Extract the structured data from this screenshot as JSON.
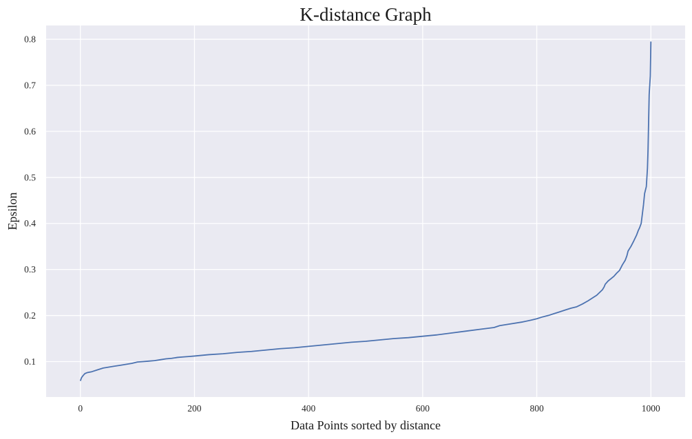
{
  "chart_data": {
    "type": "line",
    "title": "K-distance Graph",
    "xlabel": "Data Points sorted by distance",
    "ylabel": "Epsilon",
    "xlim": [
      -60,
      1060
    ],
    "ylim": [
      0.023,
      0.83
    ],
    "x_ticks": [
      0,
      200,
      400,
      600,
      800,
      1000
    ],
    "y_ticks": [
      0.1,
      0.2,
      0.3,
      0.4,
      0.5,
      0.6,
      0.7,
      0.8
    ],
    "x_tick_labels": [
      "0",
      "200",
      "400",
      "600",
      "800",
      "1000"
    ],
    "y_tick_labels": [
      "0.1",
      "0.2",
      "0.3",
      "0.4",
      "0.5",
      "0.6",
      "0.7",
      "0.8"
    ],
    "grid": true,
    "legend": false,
    "colors": {
      "background": "#eaeaf2",
      "grid": "#ffffff",
      "line": "#4c72b0"
    },
    "series": [
      {
        "x": [
          0,
          2,
          5,
          8,
          12,
          20,
          30,
          40,
          50,
          60,
          70,
          80,
          90,
          100,
          110,
          120,
          130,
          140,
          150,
          160,
          170,
          180,
          190,
          200,
          225,
          250,
          275,
          300,
          325,
          350,
          375,
          400,
          425,
          450,
          475,
          500,
          525,
          550,
          575,
          600,
          625,
          650,
          675,
          700,
          725,
          735,
          750,
          775,
          790,
          800,
          810,
          820,
          830,
          840,
          850,
          860,
          870,
          880,
          890,
          900,
          905,
          910,
          915,
          918,
          920,
          925,
          930,
          935,
          940,
          945,
          950,
          955,
          958,
          960,
          965,
          970,
          975,
          978,
          980,
          983,
          985,
          987,
          989,
          990,
          992,
          994,
          995,
          996,
          997,
          998,
          999,
          1000
        ],
        "y": [
          0.058,
          0.065,
          0.07,
          0.074,
          0.076,
          0.078,
          0.082,
          0.086,
          0.088,
          0.09,
          0.092,
          0.094,
          0.096,
          0.099,
          0.1,
          0.101,
          0.102,
          0.104,
          0.106,
          0.107,
          0.109,
          0.11,
          0.111,
          0.112,
          0.115,
          0.117,
          0.12,
          0.122,
          0.125,
          0.128,
          0.13,
          0.133,
          0.136,
          0.139,
          0.142,
          0.144,
          0.147,
          0.15,
          0.152,
          0.155,
          0.158,
          0.162,
          0.166,
          0.17,
          0.174,
          0.178,
          0.181,
          0.186,
          0.19,
          0.193,
          0.197,
          0.2,
          0.204,
          0.208,
          0.212,
          0.216,
          0.219,
          0.225,
          0.232,
          0.24,
          0.244,
          0.25,
          0.256,
          0.262,
          0.268,
          0.275,
          0.28,
          0.285,
          0.292,
          0.298,
          0.31,
          0.32,
          0.33,
          0.34,
          0.35,
          0.362,
          0.375,
          0.385,
          0.39,
          0.4,
          0.42,
          0.44,
          0.465,
          0.47,
          0.48,
          0.52,
          0.56,
          0.62,
          0.68,
          0.7,
          0.72,
          0.795
        ]
      }
    ]
  }
}
